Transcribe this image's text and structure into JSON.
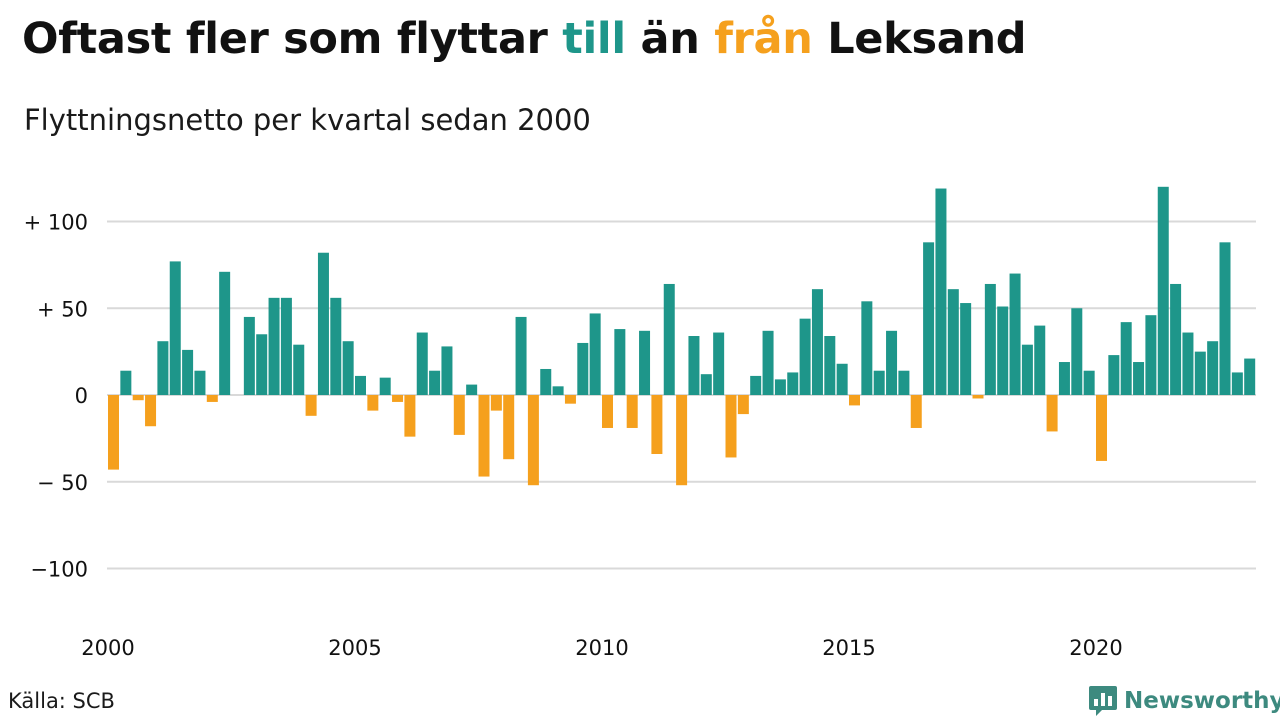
{
  "title": {
    "part1": "Oftast fler som flyttar ",
    "part2": "till",
    "part3": " än ",
    "part4": "från",
    "part5": " Leksand"
  },
  "subtitle": "Flyttningsnetto per kvartal sedan 2000",
  "source": "Källa: SCB",
  "brand": {
    "name": "Newsworthy",
    "icon": "bar-chart-speech-bubble-icon"
  },
  "colors": {
    "positive": "#1e968a",
    "negative": "#f5a01d",
    "grid": "#d9d9d9",
    "text": "#111111",
    "brand": "#3d8a7f"
  },
  "chart_data": {
    "type": "bar",
    "ylim": [
      -130,
      125
    ],
    "yticks": [
      {
        "value": 100,
        "label": "+ 100"
      },
      {
        "value": 50,
        "label": "+  50"
      },
      {
        "value": 0,
        "label": "0"
      },
      {
        "value": -50,
        "label": "− 50"
      },
      {
        "value": -100,
        "label": "−100"
      }
    ],
    "xticks": [
      {
        "year": 2000,
        "label": "2000"
      },
      {
        "year": 2005,
        "label": "2005"
      },
      {
        "year": 2010,
        "label": "2010"
      },
      {
        "year": 2015,
        "label": "2015"
      },
      {
        "year": 2020,
        "label": "2020"
      }
    ],
    "start_year": 2000,
    "start_quarter": 1,
    "grid": true,
    "values": [
      -43,
      14,
      -3,
      -18,
      31,
      77,
      26,
      14,
      -4,
      71,
      0,
      45,
      35,
      56,
      56,
      29,
      -12,
      82,
      56,
      31,
      11,
      -9,
      10,
      -4,
      -24,
      36,
      14,
      28,
      -23,
      6,
      -47,
      -9,
      -37,
      45,
      -52,
      15,
      5,
      -5,
      30,
      47,
      -19,
      38,
      -19,
      37,
      -34,
      64,
      -52,
      34,
      12,
      36,
      -36,
      -11,
      11,
      37,
      9,
      13,
      44,
      61,
      34,
      18,
      -6,
      54,
      14,
      37,
      14,
      -19,
      88,
      119,
      61,
      53,
      -2,
      64,
      51,
      70,
      29,
      40,
      -21,
      19,
      50,
      14,
      -38,
      23,
      42,
      19,
      46,
      120,
      64,
      36,
      25,
      31,
      88,
      13,
      21
    ]
  }
}
